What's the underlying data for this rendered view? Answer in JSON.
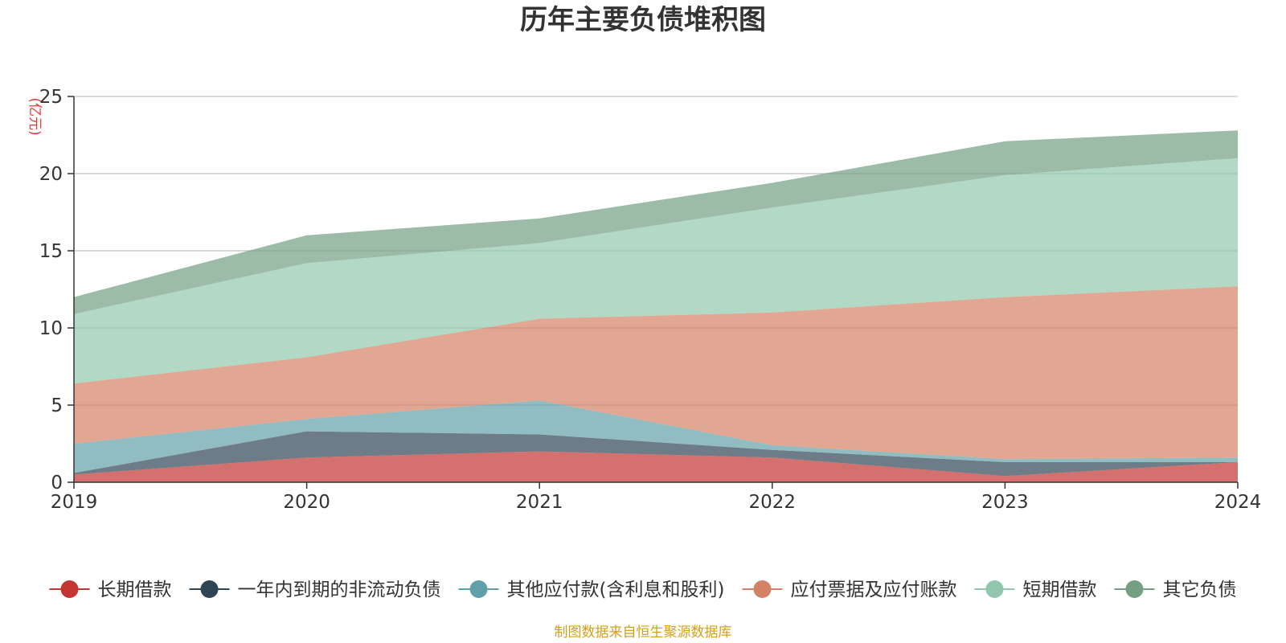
{
  "source_note": "制图数据来自恒生聚源数据库",
  "chart_data": {
    "type": "area",
    "stacked": true,
    "title": "历年主要负债堆积图",
    "unit_label": "(亿元)",
    "x": [
      "2019",
      "2020",
      "2021",
      "2022",
      "2023",
      "2024"
    ],
    "ylim": [
      0,
      25
    ],
    "yticks": [
      0,
      5,
      10,
      15,
      20,
      25
    ],
    "grid": true,
    "legend_position": "bottom",
    "series": [
      {
        "name": "长期借款",
        "color": "#c23531",
        "values": [
          0.5,
          1.6,
          2.0,
          1.6,
          0.4,
          1.3
        ]
      },
      {
        "name": "一年内到期的非流动负债",
        "color": "#2f4554",
        "values": [
          0.1,
          1.7,
          1.1,
          0.5,
          0.9,
          0.0
        ]
      },
      {
        "name": "其他应付款(含利息和股利)",
        "color": "#61a0a8",
        "values": [
          1.9,
          0.8,
          2.2,
          0.3,
          0.2,
          0.3
        ]
      },
      {
        "name": "应付票据及应付账款",
        "color": "#d48265",
        "values": [
          3.9,
          4.0,
          5.3,
          8.6,
          10.5,
          11.1
        ]
      },
      {
        "name": "短期借款",
        "color": "#91c7ae",
        "values": [
          4.5,
          6.1,
          4.9,
          6.8,
          7.9,
          8.3
        ]
      },
      {
        "name": "其它负债",
        "color": "#749f83",
        "values": [
          1.1,
          1.8,
          1.6,
          1.6,
          2.2,
          1.8
        ]
      }
    ]
  }
}
